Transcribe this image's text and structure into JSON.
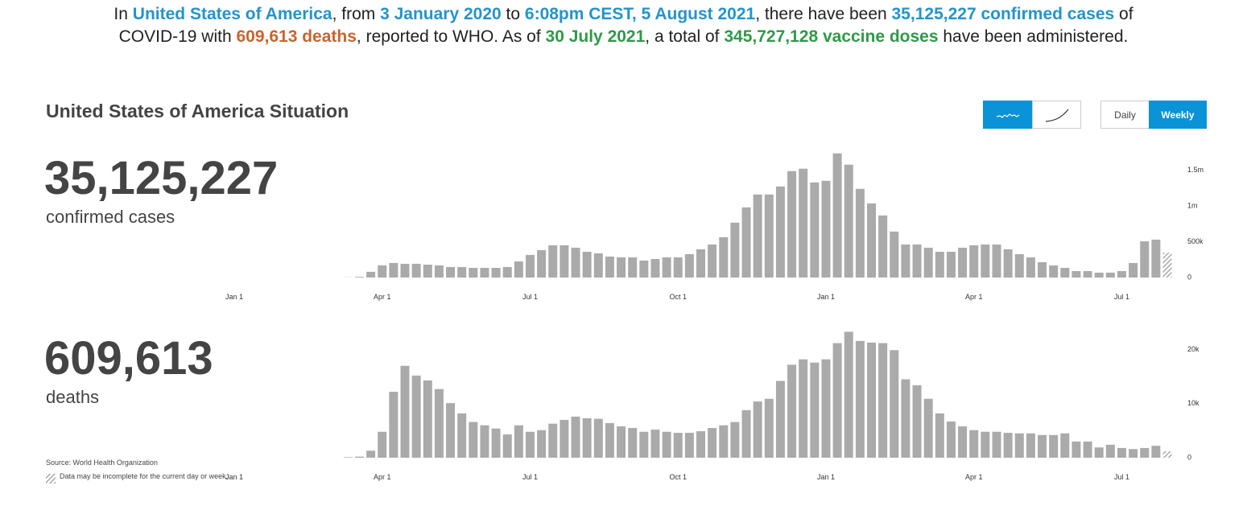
{
  "header": {
    "lines": [
      [
        {
          "text": "In ",
          "style": "plain"
        },
        {
          "text": "United States of America",
          "style": "blue"
        },
        {
          "text": ", from ",
          "style": "plain"
        },
        {
          "text": "3 January 2020",
          "style": "blue"
        },
        {
          "text": " to ",
          "style": "plain"
        },
        {
          "text": "6:08pm CEST, 5 August 2021",
          "style": "blue"
        },
        {
          "text": ", there have been ",
          "style": "plain"
        },
        {
          "text": "35,125,227 confirmed cases",
          "style": "blue"
        },
        {
          "text": " of",
          "style": "plain"
        }
      ],
      [
        {
          "text": "COVID-19 with ",
          "style": "plain"
        },
        {
          "text": "609,613 deaths",
          "style": "orange"
        },
        {
          "text": ", reported to WHO. As of ",
          "style": "plain"
        },
        {
          "text": "30 July 2021",
          "style": "green"
        },
        {
          "text": ", a total of ",
          "style": "plain"
        },
        {
          "text": "345,727,128 vaccine doses",
          "style": "green"
        },
        {
          "text": " have been administered.",
          "style": "plain"
        }
      ]
    ]
  },
  "title": "United States of America Situation",
  "controls": {
    "daily": "Daily",
    "weekly": "Weekly"
  },
  "stats": [
    {
      "value": "35,125,227",
      "label": "confirmed cases"
    },
    {
      "value": "609,613",
      "label": "deaths"
    }
  ],
  "source": "Source: World Health Organization",
  "note": "Data may be incomplete for the current day or week.",
  "chart_data": [
    {
      "type": "bar",
      "color": "#aaaaaa",
      "hatched_last": true,
      "categories": [
        "Jan 1",
        null,
        null,
        null,
        null,
        null,
        null,
        null,
        null,
        null,
        null,
        null,
        null,
        "Apr 1",
        null,
        null,
        null,
        null,
        null,
        null,
        null,
        null,
        null,
        null,
        null,
        null,
        "Jul 1",
        null,
        null,
        null,
        null,
        null,
        null,
        null,
        null,
        null,
        null,
        null,
        null,
        "Oct 1",
        null,
        null,
        null,
        null,
        null,
        null,
        null,
        null,
        null,
        null,
        null,
        null,
        "Jan 1",
        null,
        null,
        null,
        null,
        null,
        null,
        null,
        null,
        null,
        null,
        null,
        null,
        "Apr 1",
        null,
        null,
        null,
        null,
        null,
        null,
        null,
        null,
        null,
        null,
        null,
        null,
        "Jul 1",
        null,
        null,
        null,
        null
      ],
      "values": [
        null,
        null,
        null,
        null,
        null,
        null,
        null,
        null,
        null,
        null,
        2000,
        10000,
        80000,
        169000,
        203000,
        192000,
        192000,
        180000,
        169000,
        147000,
        147000,
        135000,
        135000,
        135000,
        147000,
        225000,
        316000,
        383000,
        451000,
        451000,
        417000,
        360000,
        338000,
        293000,
        282000,
        282000,
        237000,
        259000,
        282000,
        282000,
        327000,
        395000,
        462000,
        564000,
        767000,
        981000,
        1161000,
        1161000,
        1274000,
        1488000,
        1522000,
        1330000,
        1353000,
        1736000,
        1578000,
        1240000,
        1037000,
        868000,
        643000,
        462000,
        462000,
        417000,
        360000,
        360000,
        417000,
        451000,
        462000,
        462000,
        395000,
        327000,
        282000,
        214000,
        169000,
        135000,
        90000,
        90000,
        68000,
        68000,
        90000,
        203000,
        507000,
        530000,
        349000
      ],
      "ylim": [
        0,
        1800000
      ],
      "yticks": [
        0,
        {
          "value": 500000,
          "label": "500k"
        },
        {
          "value": 1000000,
          "label": "1m"
        },
        {
          "value": 1500000,
          "label": "1.5m"
        }
      ]
    },
    {
      "type": "bar",
      "color": "#aaaaaa",
      "hatched_last": true,
      "categories": [
        "Jan 1",
        null,
        null,
        null,
        null,
        null,
        null,
        null,
        null,
        null,
        null,
        null,
        null,
        "Apr 1",
        null,
        null,
        null,
        null,
        null,
        null,
        null,
        null,
        null,
        null,
        null,
        null,
        "Jul 1",
        null,
        null,
        null,
        null,
        null,
        null,
        null,
        null,
        null,
        null,
        null,
        null,
        "Oct 1",
        null,
        null,
        null,
        null,
        null,
        null,
        null,
        null,
        null,
        null,
        null,
        null,
        "Jan 1",
        null,
        null,
        null,
        null,
        null,
        null,
        null,
        null,
        null,
        null,
        null,
        null,
        "Apr 1",
        null,
        null,
        null,
        null,
        null,
        null,
        null,
        null,
        null,
        null,
        null,
        null,
        "Jul 1",
        null,
        null,
        null,
        null
      ],
      "values": [
        null,
        null,
        null,
        null,
        null,
        null,
        null,
        null,
        null,
        null,
        100,
        200,
        1300,
        4800,
        12200,
        17000,
        15200,
        14300,
        12700,
        10100,
        8200,
        6600,
        6000,
        5400,
        4300,
        6000,
        4800,
        5100,
        6300,
        7000,
        7600,
        7300,
        7200,
        6400,
        5800,
        5500,
        4800,
        5200,
        4800,
        4600,
        4600,
        4900,
        5500,
        6000,
        6600,
        8800,
        10400,
        10900,
        14200,
        17200,
        18200,
        17600,
        18200,
        21200,
        23300,
        21600,
        21300,
        21200,
        19900,
        14500,
        13400,
        10900,
        8200,
        6700,
        5800,
        5100,
        4800,
        4800,
        4600,
        4500,
        4500,
        4200,
        4200,
        4500,
        3000,
        3000,
        1900,
        2400,
        1800,
        1600,
        1800,
        2200,
        1200
      ],
      "ylim": [
        0,
        25000
      ],
      "yticks": [
        0,
        {
          "value": 10000,
          "label": "10k"
        },
        {
          "value": 20000,
          "label": "20k"
        }
      ]
    }
  ]
}
